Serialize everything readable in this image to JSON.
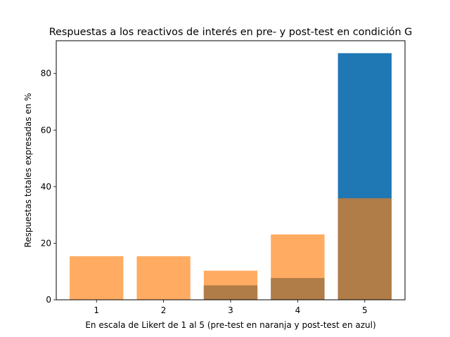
{
  "chart_data": {
    "type": "bar",
    "title": "Respuestas a los reactivos de interés en pre- y post-test en condición G",
    "xlabel": "En escala de Likert de 1 al 5 (pre-test en naranja y post-test en azul)",
    "ylabel": "Respuestas totales expresadas en %",
    "categories": [
      "1",
      "2",
      "3",
      "4",
      "5"
    ],
    "series": [
      {
        "values": [
          0,
          0,
          5.1,
          7.7,
          87.2
        ],
        "color": "#1f77b4",
        "opacity": 1.0
      },
      {
        "values": [
          15.4,
          15.4,
          10.3,
          23.1,
          35.9
        ],
        "color": "#ff7f0e",
        "opacity": 0.65
      }
    ],
    "ylim": [
      0,
      91.6
    ],
    "yticks": [
      0,
      20,
      40,
      60,
      80
    ],
    "grid": false
  }
}
